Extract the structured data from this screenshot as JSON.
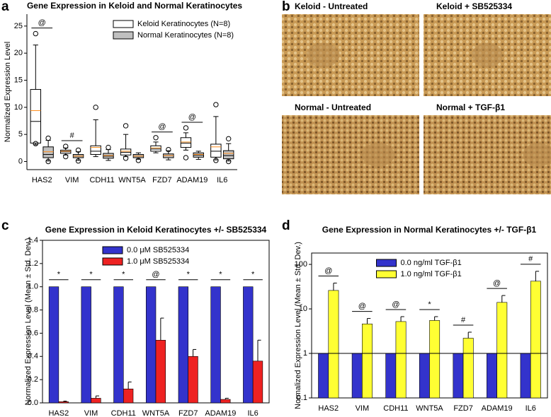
{
  "chart_data": [
    {
      "type": "box",
      "panel_label": "a",
      "title": "Gene Expression in Keloid and Normal Keratinocytes",
      "y_label": "Normalized Expression Level",
      "categories": [
        "HAS2",
        "VIM",
        "CDH11",
        "WNT5A",
        "FZD7",
        "ADAM19",
        "IL6"
      ],
      "ylim": [
        -1.5,
        27.2
      ],
      "yticks": [
        0,
        5,
        10,
        15,
        20,
        25
      ],
      "legend": "upper right",
      "mean_color": "#ff8c1a",
      "annotations": [
        "@",
        "#",
        null,
        null,
        "@",
        "@",
        null
      ],
      "series": [
        {
          "name": "Keloid Keratinocytes (N=8)",
          "color": "#ffffff",
          "boxes": [
            {
              "whislo": 3.1,
              "q1": 3.4,
              "med": 7.4,
              "mean": 9.4,
              "q3": 13.3,
              "whishi": 21.5,
              "fliers": [
                23.6,
                3.3
              ]
            },
            {
              "whislo": 1.2,
              "q1": 1.5,
              "med": 1.8,
              "mean": 1.9,
              "q3": 2.1,
              "whishi": 2.5,
              "fliers": [
                2.8,
                0.9
              ]
            },
            {
              "whislo": 0.9,
              "q1": 1.3,
              "med": 1.9,
              "mean": 2.6,
              "q3": 2.9,
              "whishi": 7.7,
              "fliers": [
                10.0
              ]
            },
            {
              "whislo": 0.9,
              "q1": 1.2,
              "med": 1.7,
              "mean": 1.9,
              "q3": 2.3,
              "whishi": 5.0,
              "fliers": [
                6.6,
                0.6
              ]
            },
            {
              "whislo": 1.6,
              "q1": 1.9,
              "med": 2.3,
              "mean": 2.5,
              "q3": 2.9,
              "whishi": 3.6,
              "fliers": [
                4.4
              ]
            },
            {
              "whislo": 2.1,
              "q1": 2.6,
              "med": 3.4,
              "mean": 3.6,
              "q3": 4.4,
              "whishi": 5.3,
              "fliers": [
                6.2,
                0.7
              ]
            },
            {
              "whislo": 0.3,
              "q1": 0.8,
              "med": 1.9,
              "mean": 2.7,
              "q3": 3.2,
              "whishi": 8.3,
              "fliers": [
                10.5,
                0.2
              ]
            }
          ]
        },
        {
          "name": "Normal Keratinocytes (N=8)",
          "color": "#c0c0c0",
          "boxes": [
            {
              "whislo": 0.1,
              "q1": 0.7,
              "med": 1.3,
              "mean": 1.8,
              "q3": 2.7,
              "whishi": 3.9,
              "fliers": [
                4.3,
                0.0
              ]
            },
            {
              "whislo": 0.2,
              "q1": 0.7,
              "med": 1.0,
              "mean": 1.0,
              "q3": 1.3,
              "whishi": 1.8,
              "fliers": [
                2.1,
                0.1
              ]
            },
            {
              "whislo": 0.2,
              "q1": 0.6,
              "med": 1.0,
              "mean": 1.1,
              "q3": 1.5,
              "whishi": 2.2,
              "fliers": [
                2.6
              ]
            },
            {
              "whislo": 0.4,
              "q1": 0.7,
              "med": 1.0,
              "mean": 1.0,
              "q3": 1.3,
              "whishi": 1.6,
              "fliers": [
                0.2
              ]
            },
            {
              "whislo": 0.3,
              "q1": 0.7,
              "med": 1.1,
              "mean": 1.1,
              "q3": 1.4,
              "whishi": 2.0,
              "fliers": [
                2.2
              ]
            },
            {
              "whislo": 0.4,
              "q1": 0.8,
              "med": 1.2,
              "mean": 1.3,
              "q3": 1.6,
              "whishi": 1.9,
              "fliers": []
            },
            {
              "whislo": 0.1,
              "q1": 0.5,
              "med": 1.1,
              "mean": 1.5,
              "q3": 2.0,
              "whishi": 3.3,
              "fliers": [
                4.2,
                0.0
              ]
            }
          ]
        }
      ]
    },
    {
      "type": "images",
      "panel_label": "b",
      "images": [
        {
          "label": "Keloid - Untreated"
        },
        {
          "label": "Keloid + SB525334"
        },
        {
          "label": "Normal - Untreated"
        },
        {
          "label": "Normal + TGF-β1"
        }
      ]
    },
    {
      "type": "bar",
      "panel_label": "c",
      "title": "Gene Expression in Keloid Keratinocytes +/- SB525334",
      "y_label": "Normalized Expression Level (Mean ± Std. Dev.)",
      "categories": [
        "HAS2",
        "VIM",
        "CDH11",
        "WNT5A",
        "FZD7",
        "ADAM19",
        "IL6"
      ],
      "ylim": [
        0,
        1.4
      ],
      "yticks": [
        {
          "value": 0,
          "label": "0.0"
        },
        0.2,
        0.4,
        0.6,
        0.8,
        {
          "value": 1,
          "label": "1.0"
        },
        1.2,
        1.4
      ],
      "legend": "upper center",
      "significance": [
        "*",
        "*",
        "*",
        "@",
        "*",
        "*",
        "*"
      ],
      "series": [
        {
          "name": "0.0 μM SB525334",
          "color": "#3333cc",
          "values": [
            1,
            1,
            1,
            1,
            1,
            1,
            1
          ]
        },
        {
          "name": "1.0 μM SB525334",
          "color": "#ee2222",
          "values": [
            0.01,
            0.04,
            0.12,
            0.54,
            0.4,
            0.03,
            0.36
          ],
          "errors": [
            0.005,
            0.02,
            0.06,
            0.19,
            0.06,
            0.01,
            0.18
          ]
        }
      ]
    },
    {
      "type": "bar",
      "panel_label": "d",
      "title": "Gene Expression in Normal Keratinocytes +/- TGF-β1",
      "y_label": "Normalized Expression Level (Mean ± Std. Dev.)",
      "categories": [
        "HAS2",
        "VIM",
        "CDH11",
        "WNT5A",
        "FZD7",
        "ADAM19",
        "IL6"
      ],
      "log_scale": true,
      "ylim": [
        0.1,
        180
      ],
      "yticks": [
        0.1,
        1,
        10,
        100
      ],
      "hline": 1,
      "legend": "upper center",
      "significance": [
        "@",
        "@",
        "@",
        "*",
        "#",
        "@",
        "#"
      ],
      "series": [
        {
          "name": "0.0 ng/ml TGF-β1",
          "color": "#3333cc",
          "values": [
            1,
            1,
            1,
            1,
            1,
            1,
            1
          ]
        },
        {
          "name": "1.0 ng/ml TGF-β1",
          "color": "#ffff33",
          "values": [
            26,
            4.6,
            5.2,
            5.5,
            2.2,
            14,
            42
          ],
          "errors": [
            12,
            1.5,
            1.5,
            1.2,
            0.8,
            6,
            28
          ]
        }
      ]
    }
  ]
}
